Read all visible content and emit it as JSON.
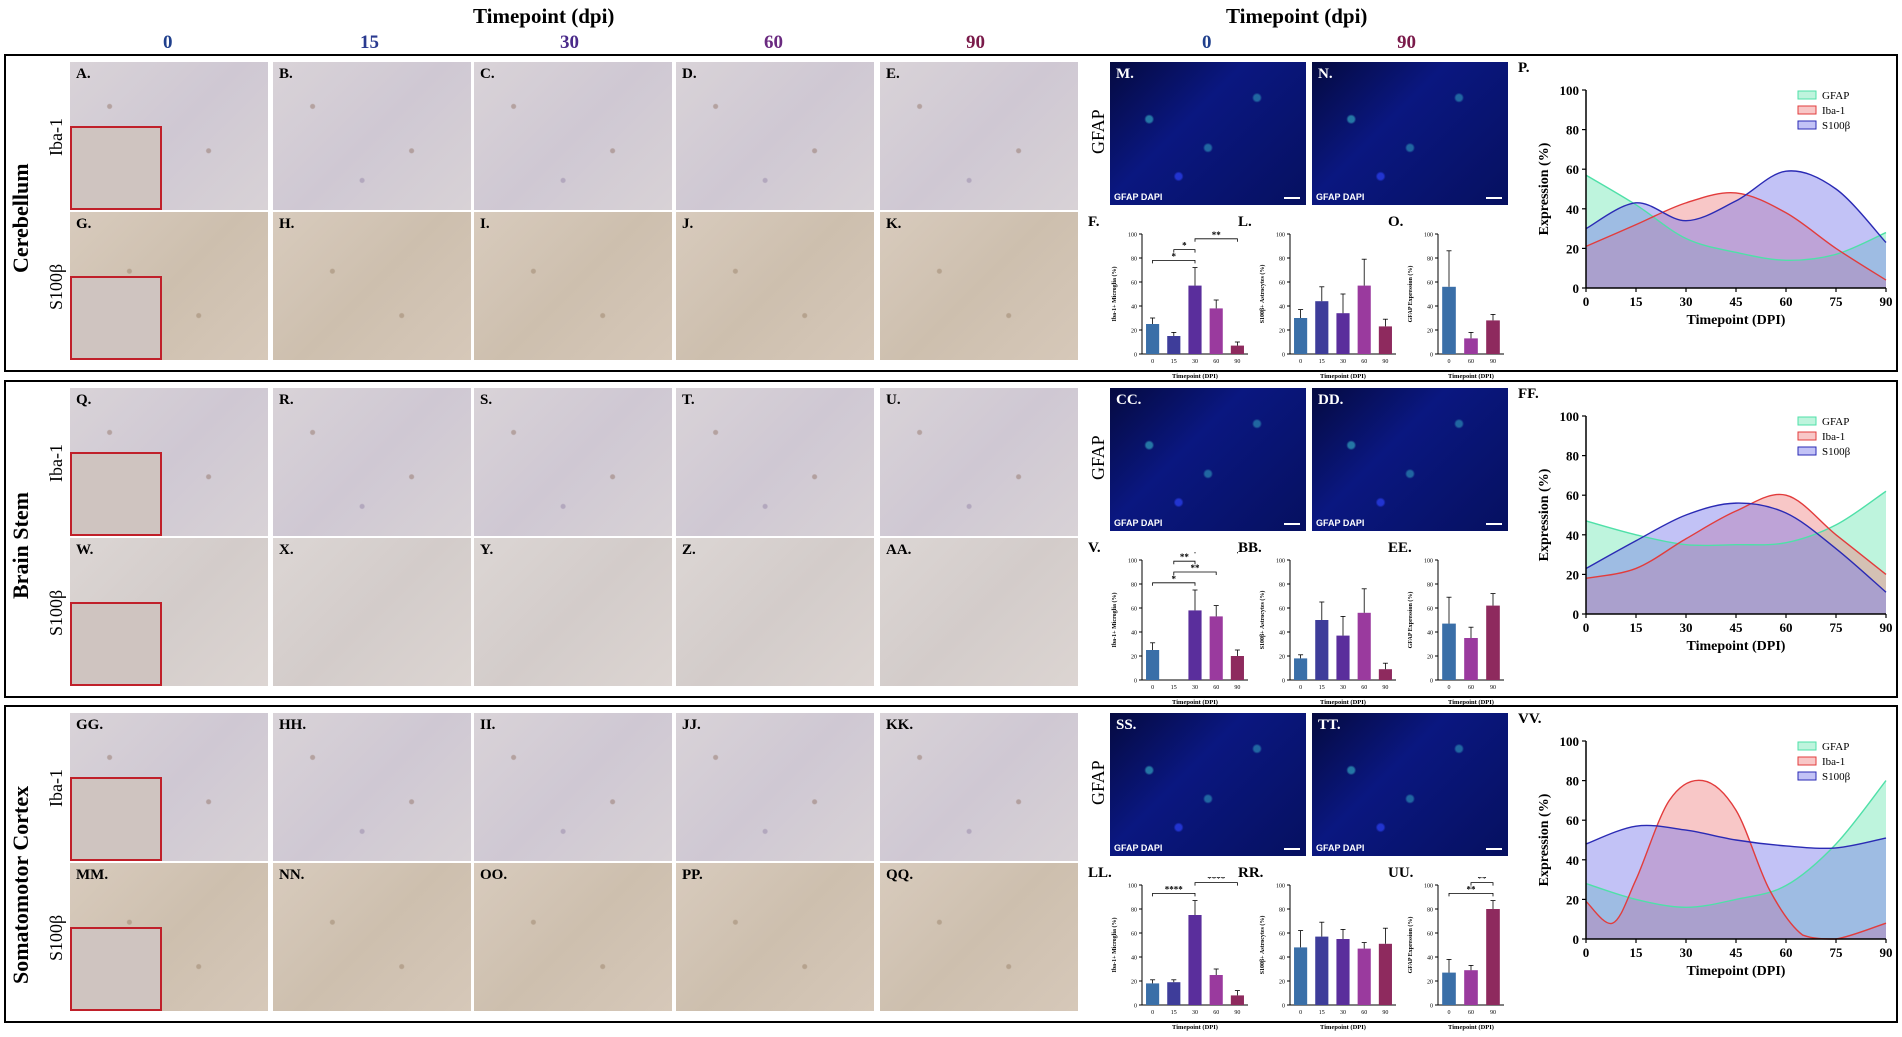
{
  "header": {
    "left_title": "Timepoint (dpi)",
    "right_title": "Timepoint (dpi)",
    "timepoints_left": [
      {
        "label": "0",
        "color": "#1f3f8c"
      },
      {
        "label": "15",
        "color": "#2a3a90"
      },
      {
        "label": "30",
        "color": "#4a2a8a"
      },
      {
        "label": "60",
        "color": "#6a2a80"
      },
      {
        "label": "90",
        "color": "#7a1a4a"
      }
    ],
    "timepoints_right": [
      {
        "label": "0",
        "color": "#1f3f8c"
      },
      {
        "label": "90",
        "color": "#7a1a4a"
      }
    ]
  },
  "stains": {
    "iba": "Iba-1",
    "s100": "S100β",
    "gfap": "GFAP"
  },
  "fluor_caption": "GFAP DAPI",
  "sections": [
    {
      "region": "Cerebellum",
      "iba_panels": [
        "A.",
        "B.",
        "C.",
        "D.",
        "E."
      ],
      "s100_panels": [
        "G.",
        "H.",
        "I.",
        "J.",
        "K."
      ],
      "gfap_panels": [
        "M.",
        "N."
      ],
      "bar_labels": [
        "F.",
        "L.",
        "O."
      ],
      "curve_label": "P."
    },
    {
      "region": "Brain Stem",
      "iba_panels": [
        "Q.",
        "R.",
        "S.",
        "T.",
        "U."
      ],
      "s100_panels": [
        "W.",
        "X.",
        "Y.",
        "Z.",
        "AA."
      ],
      "gfap_panels": [
        "CC.",
        "DD."
      ],
      "bar_labels": [
        "V.",
        "BB.",
        "EE."
      ],
      "curve_label": "FF."
    },
    {
      "region": "Somatomotor Cortex",
      "iba_panels": [
        "GG.",
        "HH.",
        "II.",
        "JJ.",
        "KK."
      ],
      "s100_panels": [
        "MM.",
        "NN.",
        "OO.",
        "PP.",
        "QQ."
      ],
      "gfap_panels": [
        "SS.",
        "TT."
      ],
      "bar_labels": [
        "LL.",
        "RR.",
        "UU."
      ],
      "curve_label": "VV."
    }
  ],
  "chart_data": [
    {
      "type": "bar",
      "panel": "F.",
      "ylabel": "Iba-1+ Microglia (%)",
      "xlabel": "Timepoint (DPI)",
      "categories": [
        "0",
        "15",
        "30",
        "60",
        "90"
      ],
      "values": [
        25,
        15,
        57,
        38,
        7
      ],
      "errors": [
        5,
        3,
        15,
        7,
        3
      ],
      "ylim": [
        0,
        100
      ],
      "yticks": [
        0,
        20,
        40,
        60,
        80,
        100
      ],
      "colors": [
        "#3a6fa8",
        "#3e3d9a",
        "#5a2e9c",
        "#9a3a9e",
        "#8e2a5e"
      ],
      "sig": [
        {
          "a": 0,
          "b": 2,
          "label": "*"
        },
        {
          "a": 1,
          "b": 2,
          "label": "*"
        },
        {
          "a": 2,
          "b": 4,
          "label": "**"
        }
      ]
    },
    {
      "type": "bar",
      "panel": "L.",
      "ylabel": "S100β+ Astrocytes (%)",
      "xlabel": "Timepoint (DPI)",
      "categories": [
        "0",
        "15",
        "30",
        "60",
        "90"
      ],
      "values": [
        30,
        44,
        34,
        57,
        23
      ],
      "errors": [
        7,
        12,
        16,
        22,
        6
      ],
      "ylim": [
        0,
        100
      ],
      "yticks": [
        0,
        20,
        40,
        60,
        80,
        100
      ],
      "colors": [
        "#3a6fa8",
        "#3e3d9a",
        "#5a2e9c",
        "#9a3a9e",
        "#8e2a5e"
      ],
      "sig": []
    },
    {
      "type": "bar",
      "panel": "O.",
      "ylabel": "GFAP Expression (%)",
      "xlabel": "Timepoint (DPI)",
      "categories": [
        "0",
        "60",
        "90"
      ],
      "values": [
        56,
        13,
        28
      ],
      "errors": [
        30,
        5,
        5
      ],
      "ylim": [
        0,
        100
      ],
      "yticks": [
        0,
        20,
        40,
        60,
        80,
        100
      ],
      "colors": [
        "#3a6fa8",
        "#9a3a9e",
        "#8e2a5e"
      ],
      "sig": []
    },
    {
      "type": "bar",
      "panel": "V.",
      "ylabel": "Iba-1+ Microglia (%)",
      "xlabel": "Timepoint (DPI)",
      "categories": [
        "0",
        "15",
        "30",
        "60",
        "90"
      ],
      "values": [
        25,
        0,
        58,
        53,
        20
      ],
      "errors": [
        6,
        0,
        17,
        9,
        5
      ],
      "ylim": [
        0,
        100
      ],
      "yticks": [
        0,
        20,
        40,
        60,
        80,
        100
      ],
      "colors": [
        "#3a6fa8",
        "#3e3d9a",
        "#5a2e9c",
        "#9a3a9e",
        "#8e2a5e"
      ],
      "sig": [
        {
          "a": 0,
          "b": 2,
          "label": "*"
        },
        {
          "a": 1,
          "b": 3,
          "label": "**"
        },
        {
          "a": 1,
          "b": 2,
          "label": "**"
        },
        {
          "a": 2,
          "b": 4,
          "label": "*"
        }
      ]
    },
    {
      "type": "bar",
      "panel": "BB.",
      "ylabel": "S100β+ Astrocytes (%)",
      "xlabel": "Timepoint (DPI)",
      "categories": [
        "0",
        "15",
        "30",
        "60",
        "90"
      ],
      "values": [
        18,
        50,
        37,
        56,
        9
      ],
      "errors": [
        3,
        15,
        16,
        20,
        5
      ],
      "ylim": [
        0,
        100
      ],
      "yticks": [
        0,
        20,
        40,
        60,
        80,
        100
      ],
      "colors": [
        "#3a6fa8",
        "#3e3d9a",
        "#5a2e9c",
        "#9a3a9e",
        "#8e2a5e"
      ],
      "sig": []
    },
    {
      "type": "bar",
      "panel": "EE.",
      "ylabel": "GFAP Expression (%)",
      "xlabel": "Timepoint (DPI)",
      "categories": [
        "0",
        "60",
        "90"
      ],
      "values": [
        47,
        35,
        62
      ],
      "errors": [
        22,
        9,
        10
      ],
      "ylim": [
        0,
        100
      ],
      "yticks": [
        0,
        20,
        40,
        60,
        80,
        100
      ],
      "colors": [
        "#3a6fa8",
        "#9a3a9e",
        "#8e2a5e"
      ],
      "sig": []
    },
    {
      "type": "bar",
      "panel": "LL.",
      "ylabel": "Iba-1+ Microglia (%)",
      "xlabel": "Timepoint (DPI)",
      "categories": [
        "0",
        "15",
        "30",
        "60",
        "90"
      ],
      "values": [
        18,
        19,
        75,
        25,
        8
      ],
      "errors": [
        3,
        2,
        12,
        5,
        4
      ],
      "ylim": [
        0,
        100
      ],
      "yticks": [
        0,
        20,
        40,
        60,
        80,
        100
      ],
      "colors": [
        "#3a6fa8",
        "#3e3d9a",
        "#5a2e9c",
        "#9a3a9e",
        "#8e2a5e"
      ],
      "sig": [
        {
          "a": 0,
          "b": 2,
          "label": "****"
        },
        {
          "a": 2,
          "b": 4,
          "label": "****"
        },
        {
          "a": 2,
          "b": 3,
          "label": "****"
        },
        {
          "a": 1,
          "b": 2,
          "label": "****"
        }
      ]
    },
    {
      "type": "bar",
      "panel": "RR.",
      "ylabel": "S100β+ Astrocytes (%)",
      "xlabel": "Timepoint (DPI)",
      "categories": [
        "0",
        "15",
        "30",
        "60",
        "90"
      ],
      "values": [
        48,
        57,
        55,
        47,
        51
      ],
      "errors": [
        14,
        12,
        8,
        5,
        13
      ],
      "ylim": [
        0,
        100
      ],
      "yticks": [
        0,
        20,
        40,
        60,
        80,
        100
      ],
      "colors": [
        "#3a6fa8",
        "#3e3d9a",
        "#5a2e9c",
        "#9a3a9e",
        "#8e2a5e"
      ],
      "sig": []
    },
    {
      "type": "bar",
      "panel": "UU.",
      "ylabel": "GFAP Expression (%)",
      "xlabel": "Timepoint (DPI)",
      "categories": [
        "0",
        "60",
        "90"
      ],
      "values": [
        27,
        29,
        80
      ],
      "errors": [
        11,
        4,
        7
      ],
      "ylim": [
        0,
        100
      ],
      "yticks": [
        0,
        20,
        40,
        60,
        80,
        100
      ],
      "colors": [
        "#3a6fa8",
        "#9a3a9e",
        "#8e2a5e"
      ],
      "sig": [
        {
          "a": 0,
          "b": 2,
          "label": "**"
        },
        {
          "a": 1,
          "b": 2,
          "label": "**"
        }
      ]
    },
    {
      "type": "area",
      "panel": "P.",
      "xlabel": "Timepoint (DPI)",
      "ylabel": "Expression (%)",
      "xlim": [
        0,
        90
      ],
      "ylim": [
        0,
        100
      ],
      "xticks": [
        0,
        15,
        30,
        45,
        60,
        75,
        90
      ],
      "yticks": [
        0,
        20,
        40,
        60,
        80,
        100
      ],
      "legend": "top-right",
      "series": [
        {
          "name": "GFAP",
          "color": "#4fe0a8",
          "fill": "rgba(110,230,180,0.45)",
          "x": [
            0,
            15,
            30,
            45,
            60,
            75,
            90
          ],
          "y": [
            57,
            42,
            25,
            18,
            14,
            17,
            28
          ]
        },
        {
          "name": "Iba-1",
          "color": "#e23c3c",
          "fill": "rgba(240,130,130,0.45)",
          "x": [
            0,
            15,
            30,
            45,
            60,
            75,
            90
          ],
          "y": [
            21,
            32,
            43,
            48,
            38,
            20,
            4
          ]
        },
        {
          "name": "S100β",
          "color": "#2a2ab4",
          "fill": "rgba(120,120,235,0.45)",
          "x": [
            0,
            15,
            30,
            45,
            60,
            75,
            90
          ],
          "y": [
            30,
            43,
            34,
            44,
            59,
            50,
            23
          ]
        }
      ]
    },
    {
      "type": "area",
      "panel": "FF.",
      "xlabel": "Timepoint (DPI)",
      "ylabel": "Expression (%)",
      "xlim": [
        0,
        90
      ],
      "ylim": [
        0,
        100
      ],
      "xticks": [
        0,
        15,
        30,
        45,
        60,
        75,
        90
      ],
      "yticks": [
        0,
        20,
        40,
        60,
        80,
        100
      ],
      "legend": "top-right",
      "series": [
        {
          "name": "GFAP",
          "color": "#4fe0a8",
          "fill": "rgba(110,230,180,0.45)",
          "x": [
            0,
            15,
            30,
            45,
            60,
            75,
            90
          ],
          "y": [
            47,
            40,
            35,
            35,
            36,
            45,
            62
          ]
        },
        {
          "name": "Iba-1",
          "color": "#e23c3c",
          "fill": "rgba(240,130,130,0.45)",
          "x": [
            0,
            15,
            30,
            45,
            60,
            75,
            90
          ],
          "y": [
            18,
            23,
            38,
            52,
            60,
            40,
            20
          ]
        },
        {
          "name": "S100β",
          "color": "#2a2ab4",
          "fill": "rgba(120,120,235,0.45)",
          "x": [
            0,
            15,
            30,
            45,
            60,
            75,
            90
          ],
          "y": [
            23,
            37,
            50,
            56,
            51,
            33,
            11
          ]
        }
      ]
    },
    {
      "type": "area",
      "panel": "VV.",
      "xlabel": "Timepoint (DPI)",
      "ylabel": "Expression (%)",
      "xlim": [
        0,
        90
      ],
      "ylim": [
        0,
        100
      ],
      "xticks": [
        0,
        15,
        30,
        45,
        60,
        75,
        90
      ],
      "yticks": [
        0,
        20,
        40,
        60,
        80,
        100
      ],
      "legend": "top-right",
      "series": [
        {
          "name": "GFAP",
          "color": "#4fe0a8",
          "fill": "rgba(110,230,180,0.45)",
          "x": [
            0,
            15,
            30,
            45,
            60,
            75,
            90
          ],
          "y": [
            28,
            20,
            16,
            20,
            27,
            48,
            80
          ]
        },
        {
          "name": "Iba-1",
          "color": "#e23c3c",
          "fill": "rgba(240,130,130,0.45)",
          "x": [
            0,
            8,
            15,
            25,
            35,
            45,
            55,
            65,
            75,
            90
          ],
          "y": [
            19,
            8,
            30,
            70,
            80,
            65,
            25,
            2,
            0,
            8
          ]
        },
        {
          "name": "S100β",
          "color": "#2a2ab4",
          "fill": "rgba(120,120,235,0.45)",
          "x": [
            0,
            15,
            30,
            45,
            60,
            75,
            90
          ],
          "y": [
            48,
            57,
            55,
            50,
            47,
            46,
            51
          ]
        }
      ]
    }
  ]
}
